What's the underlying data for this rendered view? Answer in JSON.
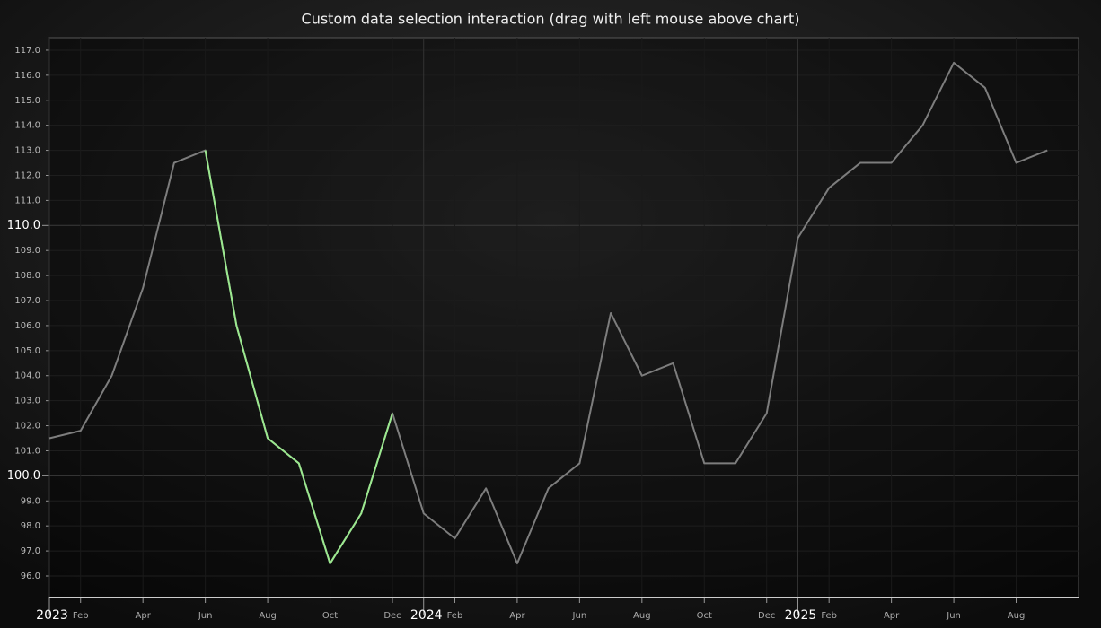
{
  "chart_data": {
    "type": "line",
    "title": "Custom data selection interaction (drag with left mouse above chart)",
    "x": [
      "2023-01",
      "2023-02",
      "2023-03",
      "2023-04",
      "2023-05",
      "2023-06",
      "2023-07",
      "2023-08",
      "2023-09",
      "2023-10",
      "2023-11",
      "2023-12",
      "2024-01",
      "2024-02",
      "2024-03",
      "2024-04",
      "2024-05",
      "2024-06",
      "2024-07",
      "2024-08",
      "2024-09",
      "2024-10",
      "2024-11",
      "2024-12",
      "2025-01",
      "2025-02",
      "2025-03",
      "2025-04",
      "2025-05",
      "2025-06",
      "2025-07",
      "2025-08",
      "2025-09"
    ],
    "series": [
      {
        "color": "#7d7d7d",
        "values": [
          101.5,
          101.8,
          104.0,
          107.5,
          112.5,
          113.0,
          106.0,
          101.5,
          100.5,
          96.5,
          98.5,
          102.5,
          98.5,
          97.5,
          99.5,
          96.5,
          99.5,
          100.5,
          106.5,
          104.0,
          104.5,
          100.5,
          100.5,
          102.5,
          109.5,
          111.5,
          112.5,
          112.5,
          114.0,
          116.5,
          115.5,
          112.5,
          113.0
        ]
      },
      {
        "color": "#9be88f",
        "values": [
          null,
          null,
          null,
          null,
          null,
          113.0,
          106.0,
          101.5,
          100.5,
          96.5,
          98.5,
          102.5,
          null,
          null,
          null,
          null,
          null,
          null,
          null,
          null,
          null,
          null,
          null,
          null,
          null,
          null,
          null,
          null,
          null,
          null,
          null,
          null,
          null
        ]
      }
    ],
    "xlim": [
      "2023-01",
      "2025-10"
    ],
    "xticks": [
      {
        "value": "2023-01",
        "label": "2023"
      },
      {
        "value": "2023-02",
        "label": "Feb"
      },
      {
        "value": "2023-04",
        "label": "Apr"
      },
      {
        "value": "2023-06",
        "label": "Jun"
      },
      {
        "value": "2023-08",
        "label": "Aug"
      },
      {
        "value": "2023-10",
        "label": "Oct"
      },
      {
        "value": "2023-12",
        "label": "Dec"
      },
      {
        "value": "2024-01",
        "label": "2024"
      },
      {
        "value": "2024-02",
        "label": "Feb"
      },
      {
        "value": "2024-04",
        "label": "Apr"
      },
      {
        "value": "2024-06",
        "label": "Jun"
      },
      {
        "value": "2024-08",
        "label": "Aug"
      },
      {
        "value": "2024-10",
        "label": "Oct"
      },
      {
        "value": "2024-12",
        "label": "Dec"
      },
      {
        "value": "2025-01",
        "label": "2025"
      },
      {
        "value": "2025-02",
        "label": "Feb"
      },
      {
        "value": "2025-04",
        "label": "Apr"
      },
      {
        "value": "2025-06",
        "label": "Jun"
      },
      {
        "value": "2025-08",
        "label": "Aug"
      }
    ],
    "ylim": [
      95.14,
      117.5
    ],
    "yticks": [
      {
        "value": 96,
        "label": "96.0"
      },
      {
        "value": 97,
        "label": "97.0"
      },
      {
        "value": 98,
        "label": "98.0"
      },
      {
        "value": 99,
        "label": "99.0"
      },
      {
        "value": 100,
        "label": "100.0"
      },
      {
        "value": 101,
        "label": "101.0"
      },
      {
        "value": 102,
        "label": "102.0"
      },
      {
        "value": 103,
        "label": "103.0"
      },
      {
        "value": 104,
        "label": "104.0"
      },
      {
        "value": 105,
        "label": "105.0"
      },
      {
        "value": 106,
        "label": "106.0"
      },
      {
        "value": 107,
        "label": "107.0"
      },
      {
        "value": 108,
        "label": "108.0"
      },
      {
        "value": 109,
        "label": "109.0"
      },
      {
        "value": 110,
        "label": "110.0"
      },
      {
        "value": 111,
        "label": "111.0"
      },
      {
        "value": 112,
        "label": "112.0"
      },
      {
        "value": 113,
        "label": "113.0"
      },
      {
        "value": 114,
        "label": "114.0"
      },
      {
        "value": 115,
        "label": "115.0"
      },
      {
        "value": 116,
        "label": "116.0"
      },
      {
        "value": 117,
        "label": "117.0"
      }
    ],
    "grid": true
  }
}
